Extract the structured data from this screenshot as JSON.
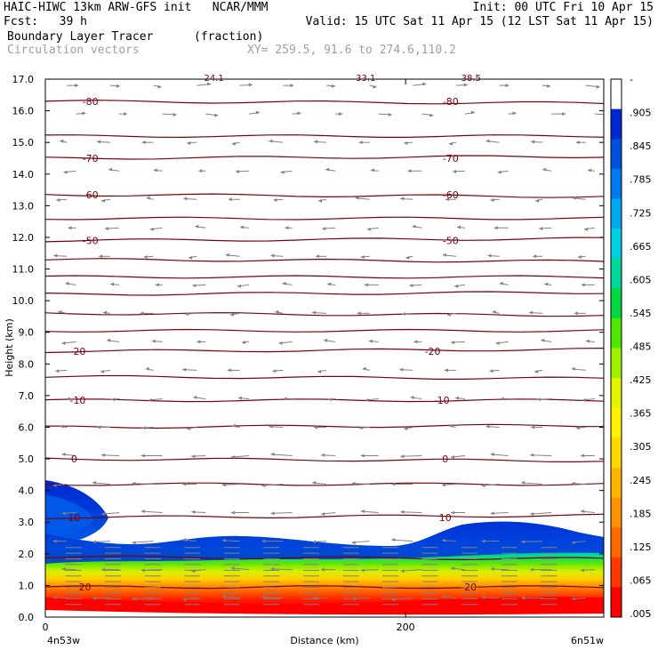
{
  "header": {
    "line1_left": "HAIC-HIWC 13km ARW-GFS init   NCAR/MMM",
    "line1_right": "Init: 00 UTC Fri 10 Apr 15",
    "line2_left": "Fcst:   39 h",
    "line2_right": "Valid: 15 UTC Sat 11 Apr 15 (12 LST Sat 11 Apr 15)",
    "line3_left": "Boundary Layer Tracer",
    "line3_mid": "(fraction)",
    "line4_left": "Circulation vectors",
    "line4_mid": "XY= 259.5, 91.6 to 274.6,110.2"
  },
  "colors": {
    "isotherm": "#7a0010",
    "vector": "#808080",
    "colorbar": [
      "#ff0000",
      "#ff3800",
      "#ff6a00",
      "#ff9200",
      "#ffb400",
      "#ffd800",
      "#fff200",
      "#e0f500",
      "#9ef000",
      "#50e600",
      "#00d840",
      "#00d89a",
      "#00cfe0",
      "#00a8f0",
      "#0078f0",
      "#0050e0",
      "#0028d0",
      "#ffffff"
    ]
  },
  "chart_data": {
    "type": "heatmap",
    "title": "Boundary Layer Tracer",
    "units": "(fraction)",
    "overlay": "Circulation vectors",
    "xlabel": "Distance (km)",
    "ylabel": "Height (km)",
    "xlim": [
      0,
      310
    ],
    "ylim": [
      0,
      17
    ],
    "x_ticks": [
      "0",
      "200"
    ],
    "x_left_label": "4n53w",
    "x_right_label": "6n51w",
    "y_ticks": [
      "0.0",
      "1.0",
      "2.0",
      "3.0",
      "4.0",
      "5.0",
      "6.0",
      "7.0",
      "8.0",
      "9.0",
      "10.0",
      "11.0",
      "12.0",
      "13.0",
      "14.0",
      "15.0",
      "16.0",
      "17.0"
    ],
    "colorbar_labels": [
      "-",
      ".905",
      ".845",
      ".785",
      ".725",
      ".665",
      ".605",
      ".545",
      ".485",
      ".425",
      ".365",
      ".305",
      ".245",
      ".185",
      ".125",
      ".065",
      ".005"
    ],
    "contour_labels": [
      {
        "text": "-80",
        "x": [
          25,
          225
        ],
        "y": 16.3
      },
      {
        "text": "-70",
        "x": [
          25,
          225
        ],
        "y": 14.5
      },
      {
        "text": "-60",
        "x": [
          25,
          225
        ],
        "y": 13.35
      },
      {
        "text": "-50",
        "x": [
          25,
          225
        ],
        "y": 11.9
      },
      {
        "text": "-20",
        "x": [
          18,
          215
        ],
        "y": 8.4
      },
      {
        "text": "-10",
        "x": [
          18,
          220
        ],
        "y": 6.85
      },
      {
        "text": "0",
        "x": [
          16,
          222
        ],
        "y": 5.0
      },
      {
        "text": "10",
        "x": [
          16,
          222
        ],
        "y": 3.15
      },
      {
        "text": "20",
        "x": [
          22,
          236
        ],
        "y": 0.95
      }
    ],
    "isotherm_heights": [
      16.3,
      15.2,
      14.5,
      13.35,
      12.6,
      11.9,
      11.3,
      10.75,
      10.2,
      9.6,
      9.05,
      8.4,
      7.6,
      6.85,
      6.0,
      5.0,
      4.2,
      3.15,
      1.9,
      0.95
    ],
    "top_partial_labels": [
      "24.1",
      "33.1",
      "38.5"
    ]
  }
}
